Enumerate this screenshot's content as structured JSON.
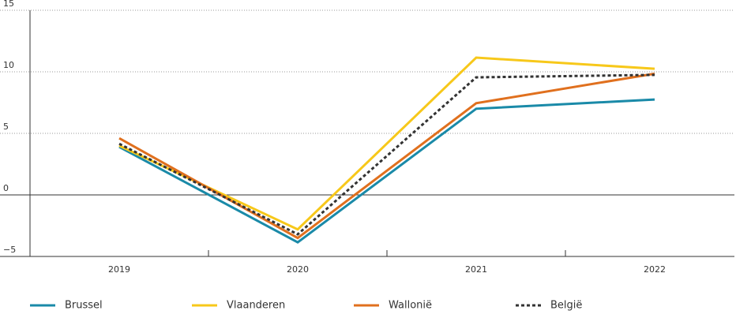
{
  "chart_data": {
    "type": "line",
    "categories": [
      "2019",
      "2020",
      "2021",
      "2022"
    ],
    "series": [
      {
        "name": "Brussel",
        "color": "#1a8aa8",
        "values": [
          3.9,
          -3.85,
          7.0,
          7.75
        ]
      },
      {
        "name": "Vlaanderen",
        "color": "#f7c81a",
        "values": [
          4.0,
          -2.8,
          11.15,
          10.25
        ]
      },
      {
        "name": "Wallonië",
        "color": "#e0701e",
        "values": [
          4.6,
          -3.5,
          7.45,
          9.85
        ]
      },
      {
        "name": "België",
        "color": "#333333",
        "dashed": true,
        "values": [
          4.15,
          -3.2,
          9.55,
          9.75
        ]
      }
    ],
    "ylim": [
      -5,
      15
    ],
    "yticks": [
      {
        "value": -5,
        "label": "−5"
      },
      0,
      5,
      10,
      15
    ],
    "grid": true,
    "legend": "bottom"
  }
}
